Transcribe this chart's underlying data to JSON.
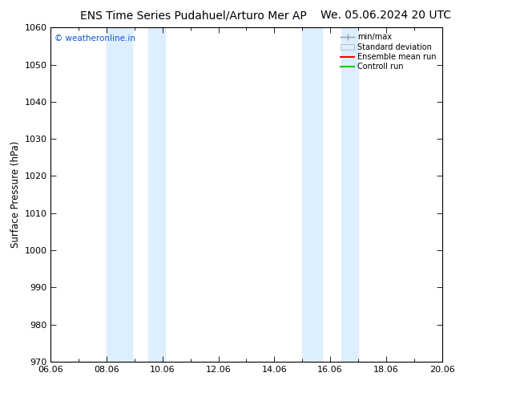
{
  "title_left": "ENS Time Series Pudahuel/Arturo Mer AP",
  "title_right": "We. 05.06.2024 20 UTC",
  "ylabel": "Surface Pressure (hPa)",
  "ylim": [
    970,
    1060
  ],
  "yticks": [
    970,
    980,
    990,
    1000,
    1010,
    1020,
    1030,
    1040,
    1050,
    1060
  ],
  "xlim_start": 0,
  "xlim_end": 14,
  "xtick_labels": [
    "06.06",
    "08.06",
    "10.06",
    "12.06",
    "14.06",
    "16.06",
    "18.06",
    "20.06"
  ],
  "xtick_positions": [
    0,
    2,
    4,
    6,
    8,
    10,
    12,
    14
  ],
  "shade_bands": [
    {
      "xstart": 2.0,
      "xend": 2.9
    },
    {
      "xstart": 3.5,
      "xend": 4.1
    },
    {
      "xstart": 9.0,
      "xend": 9.7
    },
    {
      "xstart": 10.4,
      "xend": 11.0
    }
  ],
  "shade_color": "#ddeeff",
  "background_color": "#ffffff",
  "watermark": "© weatheronline.in",
  "watermark_color": "#1155cc",
  "legend_entries": [
    "min/max",
    "Standard deviation",
    "Ensemble mean run",
    "Controll run"
  ],
  "legend_line_colors": [
    "#999999",
    "#cccccc",
    "#ff0000",
    "#00cc00"
  ],
  "title_fontsize": 10,
  "tick_fontsize": 8,
  "ylabel_fontsize": 8.5
}
